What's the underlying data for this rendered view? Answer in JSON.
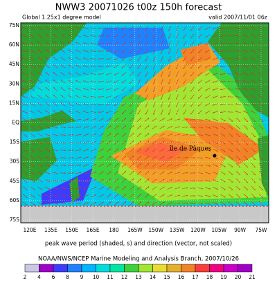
{
  "header": {
    "title": "NWW3 20071026 t00z 150h forecast",
    "model": "Global 1.25x1 degree model",
    "valid": "valid 2007/11/01 06z"
  },
  "map": {
    "lat_labels": [
      "75N",
      "60N",
      "45N",
      "30N",
      "15N",
      "EQ",
      "15S",
      "30S",
      "45S",
      "60S",
      "75S"
    ],
    "lon_labels": [
      "120E",
      "135E",
      "150E",
      "165E",
      "180",
      "165W",
      "150W",
      "135W",
      "120W",
      "105W",
      "90W",
      "75W"
    ],
    "annotation": "île de Pâques"
  },
  "caption": "peak wave period (shaded, s) and direction (vector, not scaled)",
  "credit": "NOAA/NWS/NCEP Marine Modeling and Analysis Branch, 2007/10/26",
  "colorbar": {
    "ticks": [
      2,
      4,
      6,
      8,
      9,
      10,
      11,
      12,
      13,
      14,
      15,
      16,
      17,
      18,
      19,
      20,
      21
    ],
    "colors": [
      "#c8c8e6",
      "#a000c8",
      "#3c3cff",
      "#1e82ff",
      "#00b4ff",
      "#00dcdc",
      "#00e6a0",
      "#3cd23c",
      "#a0e632",
      "#e6dc32",
      "#e6af2d",
      "#f08228",
      "#fa3c3c",
      "#f00082",
      "#c800c8",
      "#a000c8"
    ]
  }
}
